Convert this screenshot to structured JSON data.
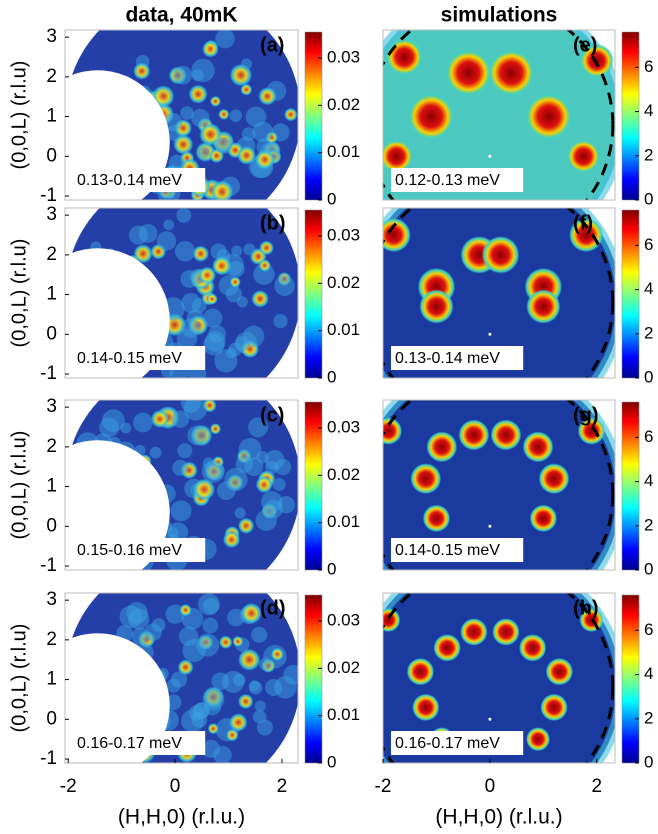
{
  "chart_data": [
    {
      "type": "heatmap",
      "title": "data, 40mK",
      "ylabel": "(0,0,L) (r.l.u)",
      "label": "(a)",
      "annotation": "0.13-0.14 meV",
      "xlim": [
        -2.06,
        2.3
      ],
      "ylim": [
        -1.1,
        3.18
      ],
      "yticks": [
        -1,
        0,
        1,
        2,
        3
      ],
      "clim": [
        0,
        0.0355
      ],
      "cticks": [
        0,
        0.01,
        0.02,
        0.03
      ]
    },
    {
      "type": "heatmap",
      "ylabel": "(0,0,L) (r.l.u)",
      "label": "(b)",
      "annotation": "0.14-0.15 meV",
      "xlim": [
        -2.06,
        2.3
      ],
      "ylim": [
        -1.1,
        3.18
      ],
      "yticks": [
        -1,
        0,
        1,
        2,
        3
      ],
      "clim": [
        0,
        0.0355
      ],
      "cticks": [
        0,
        0.01,
        0.02,
        0.03
      ]
    },
    {
      "type": "heatmap",
      "ylabel": "(0,0,L) (r.l.u)",
      "label": "(c)",
      "annotation": "0.15-0.16 meV",
      "xlim": [
        -2.06,
        2.3
      ],
      "ylim": [
        -1.1,
        3.18
      ],
      "yticks": [
        -1,
        0,
        1,
        2,
        3
      ],
      "clim": [
        0,
        0.0355
      ],
      "cticks": [
        0,
        0.01,
        0.02,
        0.03
      ]
    },
    {
      "type": "heatmap",
      "ylabel": "(0,0,L) (r.l.u)",
      "xlabel": "(H,H,0) (r.l.u.)",
      "label": "(d)",
      "annotation": "0.16-0.17 meV",
      "xlim": [
        -2.06,
        2.3
      ],
      "ylim": [
        -1.1,
        3.18
      ],
      "yticks": [
        -1,
        0,
        1,
        2,
        3
      ],
      "xticks": [
        -2,
        0,
        2
      ],
      "clim": [
        0,
        0.0355
      ],
      "cticks": [
        0,
        0.01,
        0.02,
        0.03
      ]
    },
    {
      "type": "simulation",
      "title": "simulations",
      "label": "(e)",
      "annotation": "0.12-0.13 meV",
      "xlim": [
        -2,
        2.34
      ],
      "ylim": [
        -1.1,
        3.18
      ],
      "clim": [
        0,
        7.6
      ],
      "cticks": [
        0,
        2,
        4,
        6
      ]
    },
    {
      "type": "simulation",
      "label": "(f)",
      "annotation": "0.13-0.14 meV",
      "xlim": [
        -2,
        2.34
      ],
      "ylim": [
        -1.1,
        3.18
      ],
      "clim": [
        0,
        7.6
      ],
      "cticks": [
        0,
        2,
        4,
        6
      ]
    },
    {
      "type": "simulation",
      "label": "(g)",
      "annotation": "0.14-0.15 meV",
      "xlim": [
        -2,
        2.34
      ],
      "ylim": [
        -1.1,
        3.18
      ],
      "clim": [
        0,
        7.6
      ],
      "cticks": [
        0,
        2,
        4,
        6
      ]
    },
    {
      "type": "simulation",
      "xlabel": "(H,H,0) (r.l.u.)",
      "label": "(h)",
      "annotation": "0.16-0.17 meV",
      "xlim": [
        -2,
        2.34
      ],
      "ylim": [
        -1.1,
        3.18
      ],
      "xticks": [
        -2,
        0,
        2
      ],
      "clim": [
        0,
        7.6
      ],
      "cticks": [
        0,
        2,
        4,
        6
      ]
    }
  ]
}
